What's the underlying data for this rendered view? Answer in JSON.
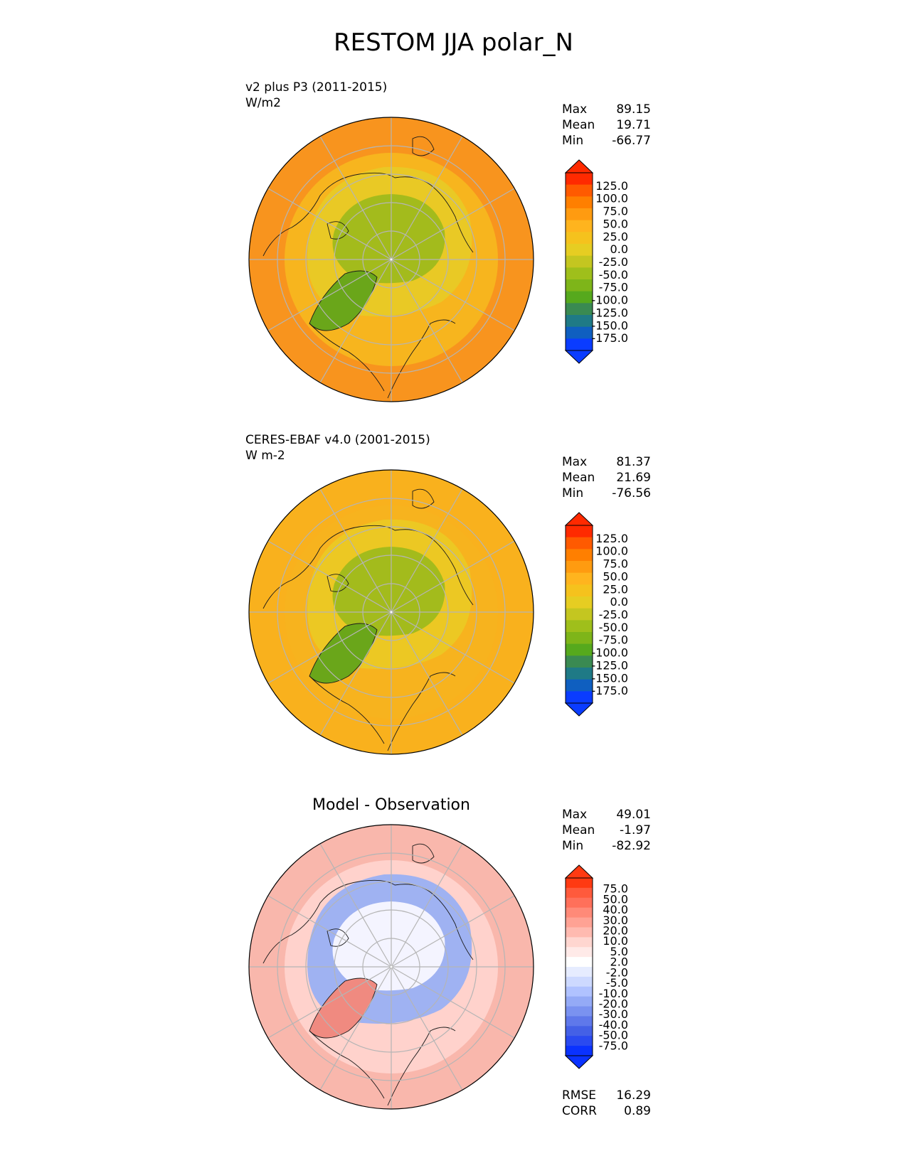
{
  "title": "RESTOM JJA polar_N",
  "chart_data": [
    {
      "type": "heatmap",
      "projection": "north polar stereographic",
      "title_left": "v2 plus P3 (2011-2015)",
      "units": "W/m2",
      "stats": [
        {
          "label": "Max",
          "value": "89.15"
        },
        {
          "label": "Mean",
          "value": "19.71"
        },
        {
          "label": "Min",
          "value": "-66.77"
        }
      ],
      "colorbar": {
        "ticks": [
          "125.0",
          "100.0",
          "75.0",
          "50.0",
          "25.0",
          "0.0",
          "-25.0",
          "-50.0",
          "-75.0",
          "-100.0",
          "-125.0",
          "-150.0",
          "-175.0"
        ],
        "colors": [
          "#ff2a00",
          "#ff5a00",
          "#ff7f00",
          "#ff9b10",
          "#ffb41e",
          "#f5c21d",
          "#e6cd22",
          "#c4c620",
          "#9fbf1b",
          "#7eb519",
          "#56a91d",
          "#3a8a52",
          "#1f7a86",
          "#0f5fc0",
          "#0a3cff"
        ],
        "extend": "both"
      },
      "fields": {
        "outer": "#f8941e",
        "ring3": "#f7b51e",
        "ring2": "#e9c925",
        "inner": "#a3bb1c",
        "greenland": "#6aa61a"
      }
    },
    {
      "type": "heatmap",
      "projection": "north polar stereographic",
      "title_left": "CERES-EBAF v4.0 (2001-2015)",
      "units": "W m-2",
      "stats": [
        {
          "label": "Max",
          "value": "81.37"
        },
        {
          "label": "Mean",
          "value": "21.69"
        },
        {
          "label": "Min",
          "value": "-76.56"
        }
      ],
      "colorbar": {
        "ticks": [
          "125.0",
          "100.0",
          "75.0",
          "50.0",
          "25.0",
          "0.0",
          "-25.0",
          "-50.0",
          "-75.0",
          "-100.0",
          "-125.0",
          "-150.0",
          "-175.0"
        ],
        "colors": [
          "#ff2a00",
          "#ff5a00",
          "#ff7f00",
          "#ff9b10",
          "#ffb41e",
          "#f5c21d",
          "#e6cd22",
          "#c4c620",
          "#9fbf1b",
          "#7eb519",
          "#56a91d",
          "#3a8a52",
          "#1f7a86",
          "#0f5fc0",
          "#0a3cff"
        ],
        "extend": "both"
      },
      "fields": {
        "outer": "#f9b11d",
        "ring3": "#f7b31e",
        "ring2": "#ecc823",
        "inner": "#a3bb1c",
        "greenland": "#6aa61a"
      }
    },
    {
      "type": "heatmap",
      "projection": "north polar stereographic",
      "title_center": "Model - Observation",
      "stats": [
        {
          "label": "Max",
          "value": "49.01"
        },
        {
          "label": "Mean",
          "value": "-1.97"
        },
        {
          "label": "Min",
          "value": "-82.92"
        }
      ],
      "colorbar": {
        "ticks": [
          "75.0",
          "50.0",
          "40.0",
          "30.0",
          "20.0",
          "10.0",
          "5.0",
          "2.0",
          "-2.0",
          "-5.0",
          "-10.0",
          "-20.0",
          "-30.0",
          "-40.0",
          "-50.0",
          "-75.0"
        ],
        "colors": [
          "#ff3a12",
          "#ff5a3c",
          "#ff705a",
          "#ff8a78",
          "#ffa294",
          "#ffbab0",
          "#ffd6d0",
          "#ffeae8",
          "#ffffff",
          "#e6ecff",
          "#cdd9ff",
          "#b0c2ff",
          "#94aaf6",
          "#7a92f0",
          "#5f78ea",
          "#4460e6",
          "#2a4af0",
          "#0a32ff"
        ],
        "extend": "both"
      },
      "fields": {
        "outer": "#f9b7ac",
        "ring3": "#ffd2cc",
        "ring2": "#9fb2f2",
        "inner": "#f4f4ff",
        "greenland": "#f08a80"
      },
      "metrics": [
        {
          "label": "RMSE",
          "value": "16.29"
        },
        {
          "label": "CORR",
          "value": "0.89"
        }
      ]
    }
  ]
}
